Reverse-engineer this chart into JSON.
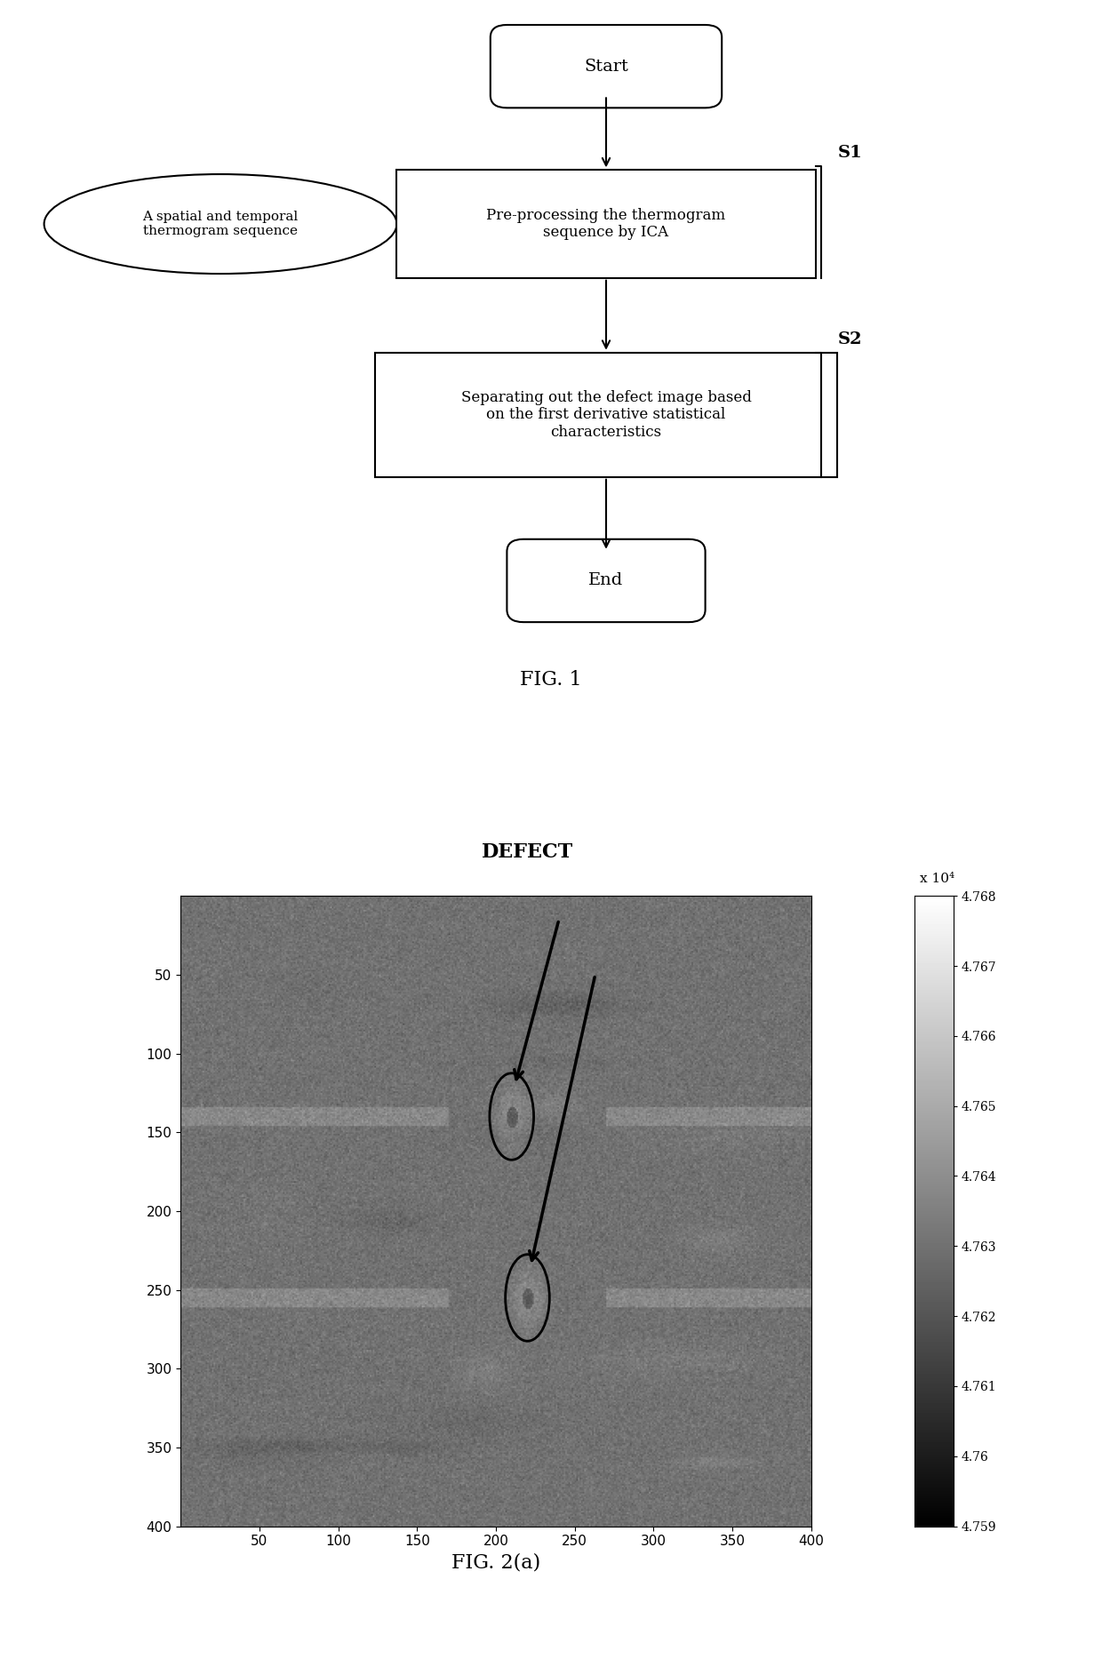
{
  "fig1": {
    "title": "FIG. 1",
    "start_text": "Start",
    "end_text": "End",
    "input_text": "A spatial and temporal\nthermogram sequence",
    "step1_text": "Pre-processing the thermogram\nsequence by ICA",
    "step2_text": "Separating out the defect image based\non the first derivative statistical\ncharacteristics",
    "s1_label": "S1",
    "s2_label": "S2"
  },
  "fig2": {
    "title": "FIG. 2(a)",
    "defect_label": "DEFECT",
    "colorbar_label": "x 10⁴",
    "colorbar_ticks": [
      4.759,
      4.76,
      4.761,
      4.762,
      4.763,
      4.764,
      4.765,
      4.766,
      4.767,
      4.768
    ],
    "xmin": 0,
    "xmax": 400,
    "ymin": 0,
    "ymax": 400,
    "xticks": [
      50,
      100,
      150,
      200,
      250,
      300,
      350,
      400
    ],
    "yticks": [
      50,
      100,
      150,
      200,
      250,
      300,
      350,
      400
    ],
    "defect1_x": 210,
    "defect1_y": 140,
    "defect2_x": 220,
    "defect2_y": 255
  }
}
